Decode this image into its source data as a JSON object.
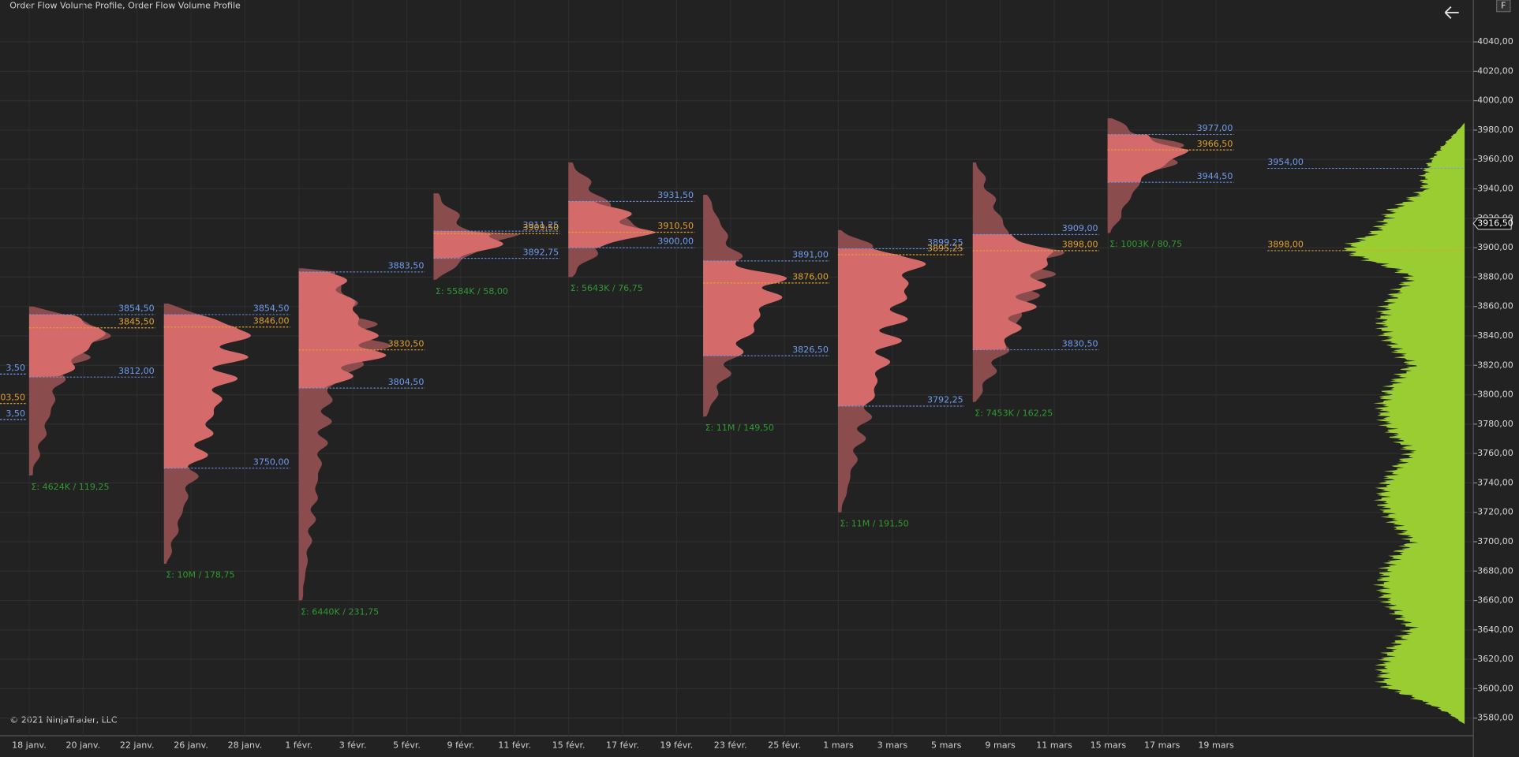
{
  "header": {
    "title": "Order Flow Volume Profile, Order Flow Volume Profile",
    "button": "F"
  },
  "copyright": "© 2021 NinjaTrader, LLC",
  "price_axis": {
    "ylim": [
      3572,
      4054
    ],
    "ticks": [
      {
        "value": 3580,
        "label": "3580,00"
      },
      {
        "value": 3600,
        "label": "3600,00"
      },
      {
        "value": 3620,
        "label": "3620,00"
      },
      {
        "value": 3640,
        "label": "3640,00"
      },
      {
        "value": 3660,
        "label": "3660,00"
      },
      {
        "value": 3680,
        "label": "3680,00"
      },
      {
        "value": 3700,
        "label": "3700,00"
      },
      {
        "value": 3720,
        "label": "3720,00"
      },
      {
        "value": 3740,
        "label": "3740,00"
      },
      {
        "value": 3760,
        "label": "3760,00"
      },
      {
        "value": 3780,
        "label": "3780,00"
      },
      {
        "value": 3800,
        "label": "3800,00"
      },
      {
        "value": 3820,
        "label": "3820,00"
      },
      {
        "value": 3840,
        "label": "3840,00"
      },
      {
        "value": 3860,
        "label": "3860,00"
      },
      {
        "value": 3880,
        "label": "3880,00"
      },
      {
        "value": 3900,
        "label": "3900,00"
      },
      {
        "value": 3920,
        "label": "3920,00"
      },
      {
        "value": 3940,
        "label": "3940,00"
      },
      {
        "value": 3960,
        "label": "3960,00"
      },
      {
        "value": 3980,
        "label": "3980,00"
      },
      {
        "value": 4000,
        "label": "4000,00"
      },
      {
        "value": 4020,
        "label": "4020,00"
      },
      {
        "value": 4040,
        "label": "4040,00"
      }
    ],
    "current_price": {
      "value": 3916.5,
      "label": "3916,50"
    }
  },
  "date_axis": [
    "18 janv.",
    "20 janv.",
    "22 janv.",
    "26 janv.",
    "28 janv.",
    "1 févr.",
    "3 févr.",
    "5 févr.",
    "9 févr.",
    "11 févr.",
    "15 févr.",
    "17 févr.",
    "19 févr.",
    "23 févr.",
    "25 févr.",
    "1 mars",
    "3 mars",
    "5 mars",
    "9 mars",
    "11 mars",
    "15 mars",
    "17 mars",
    "19 mars"
  ],
  "clipped_labels": [
    {
      "value": 3818,
      "label": "3,50",
      "kind": "va"
    },
    {
      "value": 3798,
      "label": "03,50",
      "kind": "poc"
    },
    {
      "value": 3787,
      "label": "3,50",
      "kind": "va"
    }
  ],
  "profiles": [
    {
      "high": 3860,
      "low": 3745,
      "vah": {
        "value": 3854.5,
        "label": "3854,50"
      },
      "poc": {
        "value": 3845.5,
        "label": "3845,50"
      },
      "val": {
        "value": 3812,
        "label": "3812,00"
      },
      "summary": "Σ: 4624K / 119,25"
    },
    {
      "high": 3862,
      "low": 3685,
      "vah": {
        "value": 3854.5,
        "label": "3854,50"
      },
      "poc": {
        "value": 3846,
        "label": "3846,00"
      },
      "val": {
        "value": 3750,
        "label": "3750,00"
      },
      "summary": "Σ: 10M / 178,75"
    },
    {
      "high": 3886,
      "low": 3660,
      "vah": {
        "value": 3883.5,
        "label": "3883,50"
      },
      "poc": {
        "value": 3830.5,
        "label": "3830,50"
      },
      "val": {
        "value": 3804.5,
        "label": "3804,50"
      },
      "summary": "Σ: 6440K / 231,75"
    },
    {
      "high": 3937,
      "low": 3878,
      "vah": {
        "value": 3911.25,
        "label": "3911,25"
      },
      "poc": {
        "value": 3909.5,
        "label": "3909,50"
      },
      "val": {
        "value": 3892.75,
        "label": "3892,75"
      },
      "summary": "Σ: 5584K / 58,00"
    },
    {
      "high": 3958,
      "low": 3880,
      "vah": {
        "value": 3931.5,
        "label": "3931,50"
      },
      "poc": {
        "value": 3910.5,
        "label": "3910,50"
      },
      "val": {
        "value": 3900,
        "label": "3900,00"
      },
      "summary": "Σ: 5643K / 76,75"
    },
    {
      "high": 3936,
      "low": 3785,
      "vah": {
        "value": 3891,
        "label": "3891,00"
      },
      "poc": {
        "value": 3876,
        "label": "3876,00"
      },
      "val": {
        "value": 3826.5,
        "label": "3826,50"
      },
      "summary": "Σ: 11M / 149,50"
    },
    {
      "high": 3912,
      "low": 3720,
      "vah": {
        "value": 3899.25,
        "label": "3899,25"
      },
      "poc": {
        "value": 3895.25,
        "label": "3895,25"
      },
      "val": {
        "value": 3792.25,
        "label": "3792,25"
      },
      "summary": "Σ: 11M / 191,50"
    },
    {
      "high": 3958,
      "low": 3795,
      "vah": {
        "value": 3909,
        "label": "3909,00"
      },
      "poc": {
        "value": 3898,
        "label": "3898,00"
      },
      "val": {
        "value": 3830.5,
        "label": "3830,50"
      },
      "summary": "Σ: 7453K / 162,25"
    },
    {
      "high": 3988,
      "low": 3910,
      "vah": {
        "value": 3977,
        "label": "3977,00"
      },
      "poc": {
        "value": 3966.5,
        "label": "3966,50"
      },
      "val": {
        "value": 3944.5,
        "label": "3944,50"
      },
      "summary": "Σ: 1003K / 80,75"
    }
  ],
  "composite": {
    "high": 3985,
    "low": 3576,
    "vah": {
      "value": 3954,
      "label": "3954,00"
    },
    "poc": {
      "value": 3898,
      "label": "3898,00"
    }
  }
}
